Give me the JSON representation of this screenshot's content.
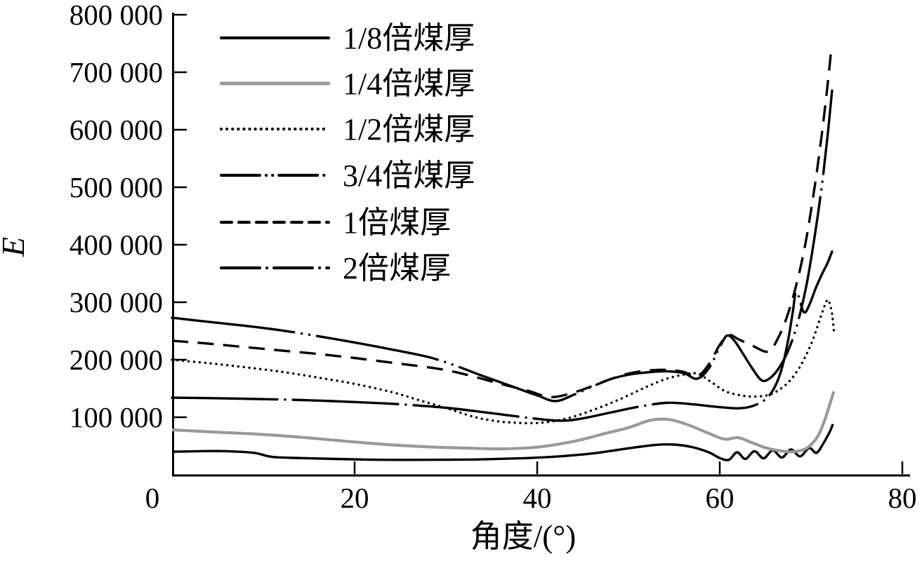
{
  "figure": {
    "background_color": "#ffffff",
    "axis_color": "#000000",
    "series_gray_color": "#999999"
  },
  "chart_data": {
    "type": "line",
    "title": "",
    "xlabel": "角度/(°)",
    "ylabel": "E",
    "xlim": [
      0,
      80
    ],
    "ylim": [
      0,
      800000
    ],
    "grid": false,
    "legend_position": "top-left-inside",
    "x_ticks": [
      {
        "value": 0,
        "label": "0"
      },
      {
        "value": 20,
        "label": "20"
      },
      {
        "value": 40,
        "label": "40"
      },
      {
        "value": 60,
        "label": "60"
      },
      {
        "value": 80,
        "label": "80"
      }
    ],
    "y_ticks": [
      {
        "value": 100000,
        "label": "100 000"
      },
      {
        "value": 200000,
        "label": "200 000"
      },
      {
        "value": 300000,
        "label": "300 000"
      },
      {
        "value": 400000,
        "label": "400 000"
      },
      {
        "value": 500000,
        "label": "500 000"
      },
      {
        "value": 600000,
        "label": "600 000"
      },
      {
        "value": 700000,
        "label": "700 000"
      },
      {
        "value": 800000,
        "label": "800 000"
      }
    ],
    "series": [
      {
        "id": "one-eighth",
        "label": "1/8倍煤厚",
        "color": "#000000",
        "line_style": "solid",
        "points": [
          [
            0,
            40000
          ],
          [
            3,
            41000
          ],
          [
            6,
            41000
          ],
          [
            9,
            38000
          ],
          [
            11,
            31000
          ],
          [
            14,
            29000
          ],
          [
            18,
            27500
          ],
          [
            23,
            26000
          ],
          [
            28,
            26000
          ],
          [
            33,
            26500
          ],
          [
            38,
            28500
          ],
          [
            42,
            31500
          ],
          [
            46,
            37000
          ],
          [
            50,
            46000
          ],
          [
            53,
            52000
          ],
          [
            55,
            52500
          ],
          [
            57,
            48000
          ],
          [
            58.8,
            39000
          ],
          [
            60,
            29000
          ],
          [
            61,
            26000
          ],
          [
            61.9,
            39000
          ],
          [
            62.8,
            27500
          ],
          [
            63.8,
            41000
          ],
          [
            64.8,
            28500
          ],
          [
            65.8,
            42500
          ],
          [
            66.8,
            30000
          ],
          [
            67.8,
            44000
          ],
          [
            68.8,
            32000
          ],
          [
            69.8,
            46500
          ],
          [
            70.6,
            38000
          ],
          [
            71.4,
            56000
          ],
          [
            72,
            73000
          ],
          [
            72.4,
            88000
          ]
        ]
      },
      {
        "id": "one-quarter",
        "label": "1/4倍煤厚",
        "color": "#999999",
        "line_style": "solid",
        "points": [
          [
            0,
            78000
          ],
          [
            5,
            74000
          ],
          [
            10,
            70000
          ],
          [
            15,
            64000
          ],
          [
            20,
            57000
          ],
          [
            24,
            52000
          ],
          [
            28,
            48500
          ],
          [
            32,
            46500
          ],
          [
            36,
            45000
          ],
          [
            40,
            48000
          ],
          [
            44,
            58000
          ],
          [
            47,
            70000
          ],
          [
            50,
            82000
          ],
          [
            52.5,
            95000
          ],
          [
            54.5,
            96000
          ],
          [
            56.5,
            87000
          ],
          [
            58.5,
            74000
          ],
          [
            60.5,
            62000
          ],
          [
            62,
            64500
          ],
          [
            63.5,
            56000
          ],
          [
            65,
            47000
          ],
          [
            66.5,
            42000
          ],
          [
            68,
            40000
          ],
          [
            69.5,
            46000
          ],
          [
            70.7,
            66000
          ],
          [
            71.5,
            95000
          ],
          [
            72,
            120000
          ],
          [
            72.5,
            145000
          ]
        ]
      },
      {
        "id": "one-half",
        "label": "1/2倍煤厚",
        "color": "#000000",
        "line_style": "dotted",
        "points": [
          [
            0,
            200000
          ],
          [
            4,
            194000
          ],
          [
            8,
            187000
          ],
          [
            12,
            179000
          ],
          [
            16,
            169000
          ],
          [
            20,
            158000
          ],
          [
            24,
            144000
          ],
          [
            27,
            130000
          ],
          [
            30,
            116000
          ],
          [
            33,
            101000
          ],
          [
            35,
            94500
          ],
          [
            37,
            91000
          ],
          [
            40,
            90000
          ],
          [
            43,
            97000
          ],
          [
            46,
            112000
          ],
          [
            49,
            131000
          ],
          [
            52,
            153000
          ],
          [
            54,
            166000
          ],
          [
            56,
            174000
          ],
          [
            57.5,
            176000
          ],
          [
            59,
            162000
          ],
          [
            60.5,
            146000
          ],
          [
            62,
            139000
          ],
          [
            63.5,
            136000
          ],
          [
            65,
            137500
          ],
          [
            66,
            143000
          ],
          [
            67.2,
            156000
          ],
          [
            68.3,
            176000
          ],
          [
            69.3,
            203000
          ],
          [
            70.2,
            235000
          ],
          [
            71,
            272000
          ],
          [
            71.7,
            302000
          ],
          [
            72,
            300000
          ],
          [
            72.3,
            280000
          ],
          [
            72.5,
            250000
          ]
        ]
      },
      {
        "id": "three-quarters",
        "label": "3/4倍煤厚",
        "color": "#000000",
        "line_style": "dashdotdot",
        "points": [
          [
            0,
            273000
          ],
          [
            4,
            266000
          ],
          [
            8,
            259000
          ],
          [
            12,
            251000
          ],
          [
            16,
            241000
          ],
          [
            20,
            230000
          ],
          [
            24,
            218000
          ],
          [
            28,
            205000
          ],
          [
            31,
            190000
          ],
          [
            34,
            172000
          ],
          [
            37,
            155000
          ],
          [
            40,
            138000
          ],
          [
            42,
            128000
          ],
          [
            44,
            139000
          ],
          [
            46,
            153000
          ],
          [
            48,
            166000
          ],
          [
            50,
            174000
          ],
          [
            52,
            178000
          ],
          [
            54,
            180000
          ],
          [
            56,
            177000
          ],
          [
            57.5,
            167000
          ],
          [
            58.8,
            185000
          ],
          [
            60,
            222000
          ],
          [
            60.8,
            242000
          ],
          [
            61.6,
            233000
          ],
          [
            62.6,
            209000
          ],
          [
            63.6,
            184000
          ],
          [
            64.6,
            164000
          ],
          [
            65.5,
            168000
          ],
          [
            66.5,
            186000
          ],
          [
            67.5,
            216000
          ],
          [
            68.5,
            262000
          ],
          [
            69.5,
            330000
          ],
          [
            70.4,
            415000
          ],
          [
            71.2,
            505000
          ],
          [
            71.8,
            588000
          ],
          [
            72.3,
            668000
          ]
        ]
      },
      {
        "id": "one-times",
        "label": "1倍煤厚",
        "color": "#000000",
        "line_style": "dashed",
        "points": [
          [
            0,
            233000
          ],
          [
            4,
            228000
          ],
          [
            8,
            222000
          ],
          [
            12,
            216000
          ],
          [
            16,
            210000
          ],
          [
            20,
            203000
          ],
          [
            24,
            195000
          ],
          [
            27,
            189000
          ],
          [
            30,
            182000
          ],
          [
            33,
            171000
          ],
          [
            36,
            158000
          ],
          [
            39,
            146000
          ],
          [
            41.5,
            135000
          ],
          [
            44,
            143000
          ],
          [
            46,
            154000
          ],
          [
            48,
            166000
          ],
          [
            50,
            176000
          ],
          [
            52,
            181000
          ],
          [
            54,
            182500
          ],
          [
            56,
            179000
          ],
          [
            57.5,
            171000
          ],
          [
            58.8,
            192000
          ],
          [
            60,
            226000
          ],
          [
            61,
            243000
          ],
          [
            62,
            236000
          ],
          [
            63.5,
            225000
          ],
          [
            65.3,
            214000
          ],
          [
            66.3,
            235000
          ],
          [
            67.3,
            272000
          ],
          [
            68.3,
            325000
          ],
          [
            69.3,
            395000
          ],
          [
            70.2,
            480000
          ],
          [
            71,
            570000
          ],
          [
            71.7,
            662000
          ],
          [
            72.2,
            737000
          ]
        ]
      },
      {
        "id": "two-times",
        "label": "2倍煤厚",
        "color": "#000000",
        "line_style": "dashdot",
        "points": [
          [
            0,
            134000
          ],
          [
            5,
            133000
          ],
          [
            10,
            131500
          ],
          [
            15,
            129500
          ],
          [
            20,
            126500
          ],
          [
            25,
            122500
          ],
          [
            30,
            116500
          ],
          [
            34,
            109000
          ],
          [
            38,
            101000
          ],
          [
            41,
            95500
          ],
          [
            43,
            94000
          ],
          [
            45,
            98000
          ],
          [
            48,
            108000
          ],
          [
            51,
            118000
          ],
          [
            54,
            125000
          ],
          [
            56,
            124000
          ],
          [
            58,
            121000
          ],
          [
            60,
            117500
          ],
          [
            62,
            115500
          ],
          [
            63.5,
            119000
          ],
          [
            65,
            131000
          ],
          [
            66,
            152000
          ],
          [
            66.8,
            185000
          ],
          [
            67.5,
            235000
          ],
          [
            68,
            283000
          ],
          [
            68.4,
            318000
          ],
          [
            69.2,
            283000
          ],
          [
            69.8,
            295000
          ],
          [
            70.5,
            324000
          ],
          [
            71.2,
            349000
          ],
          [
            71.8,
            368000
          ],
          [
            72.3,
            388000
          ]
        ]
      }
    ]
  }
}
